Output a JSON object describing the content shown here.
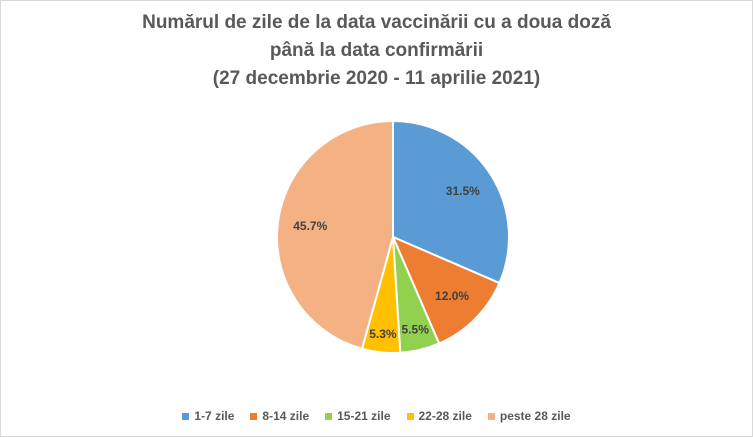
{
  "chart_data": {
    "type": "pie",
    "title_lines": [
      "Numărul de zile de la data vaccinării cu a doua doză",
      "până la data confirmării",
      "(27 decembrie 2020 - 11 aprilie 2021)"
    ],
    "categories": [
      "1-7 zile",
      "8-14 zile",
      "15-21 zile",
      "22-28 zile",
      "peste 28 zile"
    ],
    "values": [
      31.5,
      12.0,
      5.5,
      5.3,
      45.7
    ],
    "value_labels": [
      "31.5%",
      "12.0%",
      "5.5%",
      "5.3%",
      "45.7%"
    ],
    "colors": [
      "#5b9bd5",
      "#ed7d31",
      "#92d050",
      "#ffc000",
      "#f4b183"
    ],
    "start_angle": "12 o'clock, clockwise",
    "legend_position": "bottom"
  }
}
